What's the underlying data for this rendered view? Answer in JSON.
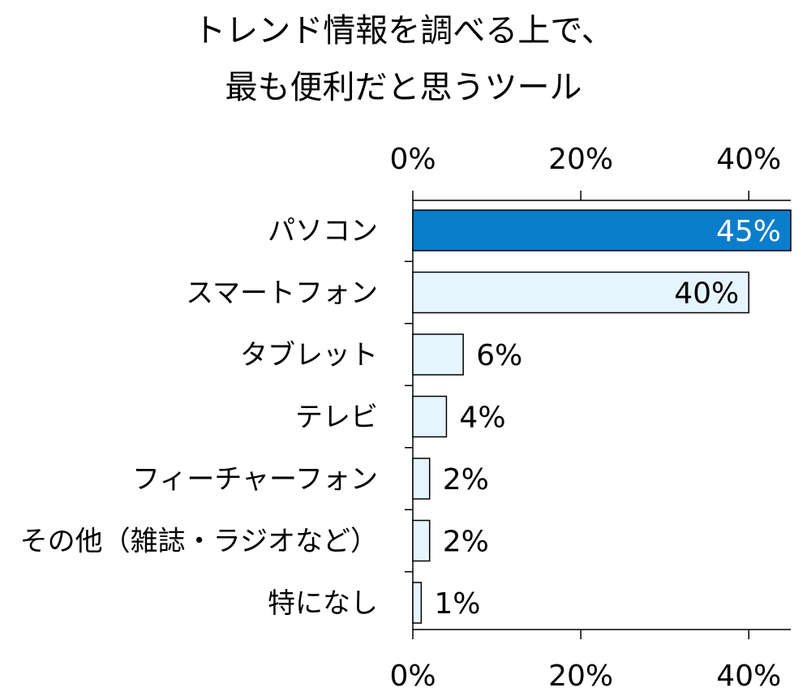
{
  "chart_data": {
    "type": "bar",
    "orientation": "horizontal",
    "title_lines": [
      "トレンド情報を調べる上で、",
      "最も便利だと思うツール"
    ],
    "categories": [
      "パソコン",
      "スマートフォン",
      "タブレット",
      "テレビ",
      "フィーチャーフォン",
      "その他（雑誌・ラジオなど）",
      "特になし"
    ],
    "values": [
      45,
      40,
      6,
      4,
      2,
      2,
      1
    ],
    "data_labels": [
      "45%",
      "40%",
      "6%",
      "4%",
      "2%",
      "2%",
      "1%"
    ],
    "xlim": [
      0,
      45
    ],
    "x_ticks": [
      0,
      20,
      40
    ],
    "x_tick_labels": [
      "0%",
      "20%",
      "40%"
    ],
    "x_axis_position": "top and bottom",
    "grid": false,
    "legend": "none",
    "colors": {
      "highlight_fill": "#0A7DCB",
      "bar_fill": "#E6F5FD",
      "bar_stroke": "#000000",
      "highlight_label": "#FFFFFF",
      "label": "#000000",
      "axis": "#000000"
    }
  }
}
